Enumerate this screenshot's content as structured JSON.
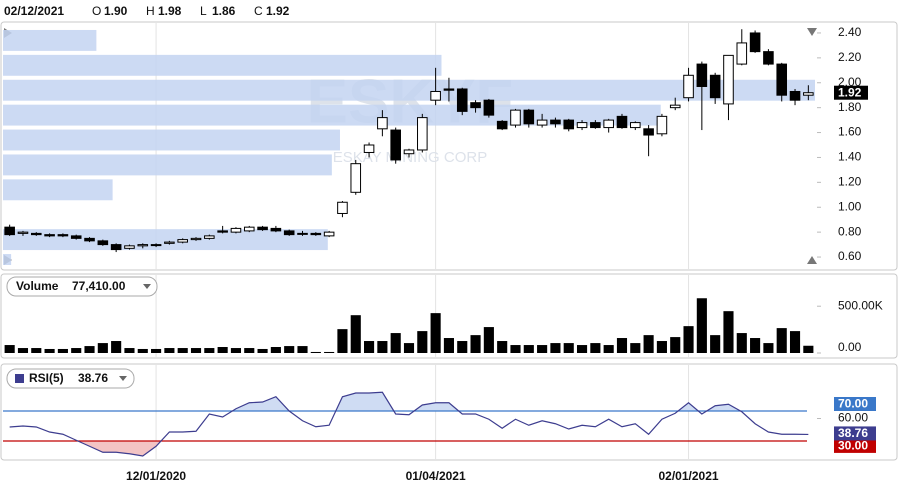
{
  "chart_data": [
    {
      "type": "candlestick",
      "header": {
        "date": "02/12/2021",
        "fields": [
          {
            "label": "O",
            "value_label": "1.90"
          },
          {
            "label": "H",
            "value_label": "1.98"
          },
          {
            "label": "L",
            "value_label": "1.86"
          },
          {
            "label": "C",
            "value_label": "1.92"
          }
        ]
      },
      "watermark": {
        "symbol": "ESKYF",
        "name": "ESKAY MINING CORP"
      },
      "xlim": [
        -0.5,
        60.5
      ],
      "ylim": [
        0.52,
        2.48
      ],
      "yticks": [
        {
          "value": 0.6,
          "label": "0.60"
        },
        {
          "value": 0.8,
          "label": "0.80"
        },
        {
          "value": 1.0,
          "label": "1.00"
        },
        {
          "value": 1.2,
          "label": "1.20"
        },
        {
          "value": 1.4,
          "label": "1.40"
        },
        {
          "value": 1.6,
          "label": "1.60"
        },
        {
          "value": 1.8,
          "label": "1.80"
        },
        {
          "value": 2.0,
          "label": "2.00"
        },
        {
          "value": 2.2,
          "label": "2.20"
        },
        {
          "value": 2.4,
          "label": "2.40"
        }
      ],
      "open": [
        0.84,
        0.79,
        0.79,
        0.78,
        0.78,
        0.77,
        0.75,
        0.73,
        0.7,
        0.67,
        0.69,
        0.7,
        0.71,
        0.72,
        0.74,
        0.75,
        0.81,
        0.8,
        0.81,
        0.84,
        0.83,
        0.81,
        0.79,
        0.79,
        0.77,
        0.95,
        1.12,
        1.44,
        1.63,
        1.62,
        1.43,
        1.46,
        1.86,
        1.95,
        1.95,
        1.84,
        1.86,
        1.69,
        1.66,
        1.78,
        1.66,
        1.7,
        1.7,
        1.64,
        1.68,
        1.64,
        1.73,
        1.64,
        1.63,
        1.59,
        1.8,
        1.88,
        2.15,
        2.06,
        1.83,
        2.15,
        2.4,
        2.25,
        2.15,
        1.93,
        1.9
      ],
      "high": [
        0.86,
        0.81,
        0.8,
        0.79,
        0.79,
        0.78,
        0.76,
        0.74,
        0.71,
        0.7,
        0.71,
        0.71,
        0.73,
        0.75,
        0.76,
        0.78,
        0.85,
        0.84,
        0.85,
        0.85,
        0.85,
        0.82,
        0.81,
        0.8,
        0.81,
        1.05,
        1.38,
        1.52,
        1.78,
        1.64,
        1.47,
        1.75,
        2.12,
        2.04,
        1.96,
        1.86,
        1.87,
        1.7,
        1.79,
        1.79,
        1.75,
        1.72,
        1.71,
        1.7,
        1.7,
        1.71,
        1.75,
        1.69,
        1.66,
        1.75,
        1.88,
        2.12,
        2.17,
        2.08,
        2.22,
        2.43,
        2.42,
        2.27,
        2.16,
        1.95,
        1.98
      ],
      "low": [
        0.77,
        0.77,
        0.77,
        0.76,
        0.76,
        0.74,
        0.72,
        0.69,
        0.64,
        0.66,
        0.67,
        0.68,
        0.7,
        0.71,
        0.73,
        0.74,
        0.79,
        0.79,
        0.8,
        0.81,
        0.8,
        0.77,
        0.77,
        0.77,
        0.76,
        0.92,
        1.1,
        1.4,
        1.57,
        1.35,
        1.4,
        1.44,
        1.82,
        1.85,
        1.74,
        1.76,
        1.72,
        1.62,
        1.64,
        1.64,
        1.64,
        1.64,
        1.61,
        1.62,
        1.63,
        1.6,
        1.63,
        1.62,
        1.41,
        1.57,
        1.78,
        1.85,
        1.62,
        1.83,
        1.7,
        2.14,
        2.24,
        2.14,
        1.85,
        1.82,
        1.86
      ],
      "close": [
        0.78,
        0.8,
        0.78,
        0.77,
        0.77,
        0.75,
        0.73,
        0.7,
        0.66,
        0.69,
        0.7,
        0.7,
        0.72,
        0.74,
        0.75,
        0.77,
        0.8,
        0.83,
        0.84,
        0.82,
        0.81,
        0.78,
        0.79,
        0.78,
        0.8,
        1.04,
        1.35,
        1.5,
        1.72,
        1.38,
        1.46,
        1.72,
        1.93,
        1.94,
        1.77,
        1.8,
        1.74,
        1.63,
        1.78,
        1.67,
        1.7,
        1.67,
        1.63,
        1.68,
        1.64,
        1.7,
        1.64,
        1.68,
        1.58,
        1.73,
        1.82,
        2.06,
        1.97,
        1.88,
        2.22,
        2.32,
        2.25,
        2.15,
        1.9,
        1.86,
        1.92
      ],
      "last_value_label": "1.92",
      "volume_by_price": {
        "color": "#c3d3f1",
        "bins": [
          0.52,
          0.64,
          0.84,
          1.04,
          1.24,
          1.44,
          1.64,
          1.84,
          2.04,
          2.24,
          2.44
        ],
        "values": [
          1,
          40,
          0,
          13.5,
          40.5,
          41.5,
          81,
          100,
          54,
          11.5
        ]
      }
    },
    {
      "type": "bar",
      "legend": "Volume",
      "last_value_label": "77,410.00",
      "color": "#000000",
      "xlim": [
        -0.5,
        60.5
      ],
      "ylim": [
        0,
        780000
      ],
      "yticks": [
        {
          "value": 0,
          "label": "0.00"
        },
        {
          "value": 500000,
          "label": "500.00K"
        }
      ],
      "values": [
        85000,
        53000,
        53000,
        43000,
        43000,
        53000,
        74000,
        106000,
        128000,
        53000,
        43000,
        43000,
        53000,
        53000,
        53000,
        53000,
        64000,
        53000,
        53000,
        43000,
        64000,
        74000,
        74000,
        11000,
        11000,
        255000,
        404000,
        128000,
        128000,
        213000,
        106000,
        234000,
        426000,
        160000,
        128000,
        191000,
        277000,
        128000,
        85000,
        85000,
        85000,
        106000,
        106000,
        85000,
        106000,
        85000,
        160000,
        106000,
        191000,
        128000,
        170000,
        287000,
        585000,
        191000,
        447000,
        213000,
        160000,
        106000,
        266000,
        234000,
        77410
      ]
    },
    {
      "type": "line",
      "legend": "RSI(5)",
      "last_value_label": "38.76",
      "color": "#3d3d8f",
      "xlim": [
        -0.5,
        60.5
      ],
      "ylim": [
        10,
        100
      ],
      "xticks": [
        {
          "value": 11,
          "label": "12/01/2020"
        },
        {
          "value": 32,
          "label": "01/04/2021"
        },
        {
          "value": 51,
          "label": "02/01/2021"
        }
      ],
      "yticks": [
        {
          "value": 60,
          "label": "60.00"
        }
      ],
      "levels": [
        {
          "value": 70,
          "label": "70.00",
          "color": "#3a78c9",
          "fill": "#cfdcf3"
        },
        {
          "value": 30,
          "label": "30.00",
          "color": "#c00000",
          "fill": "#f3c4c4"
        }
      ],
      "values": [
        48.7,
        50,
        48.7,
        42,
        39,
        31,
        23,
        15,
        15,
        13,
        10,
        23,
        42,
        42,
        43,
        66,
        62,
        73,
        81,
        82,
        89,
        70,
        57,
        49,
        51,
        89,
        94,
        94,
        95,
        66,
        65,
        78,
        81,
        81,
        66,
        66,
        59,
        47,
        59,
        51,
        57,
        53,
        46,
        51,
        49,
        59,
        49,
        53,
        39,
        59,
        67,
        81,
        66,
        77,
        79,
        69,
        53,
        42,
        39,
        39,
        38.76
      ]
    }
  ]
}
